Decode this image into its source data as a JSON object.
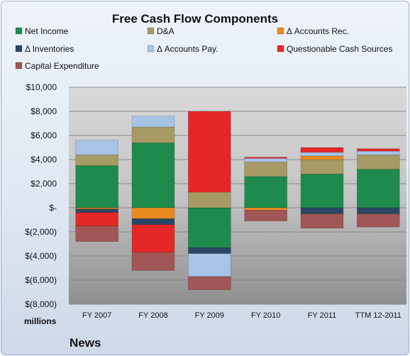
{
  "chart_data": {
    "type": "bar",
    "stacked": true,
    "title": "Free Cash Flow Components",
    "ylabel": "",
    "y_unit_label": "millions",
    "footer": "News",
    "ylim": [
      -8000,
      10000
    ],
    "y_ticks": [
      10000,
      8000,
      6000,
      4000,
      2000,
      0,
      -2000,
      -4000,
      -6000,
      -8000
    ],
    "y_tick_labels": [
      "$10,000",
      "$8,000",
      "$6,000",
      "$4,000",
      "$2,000",
      "$-",
      "$(2,000)",
      "$(4,000)",
      "$(6,000)",
      "$(8,000)"
    ],
    "categories": [
      "FY 2007",
      "FY 2008",
      "FY 2009",
      "FY 2010",
      "FY 2011",
      "TTM 12-2011"
    ],
    "legend_position": "top",
    "series": [
      {
        "name": "Net Income",
        "color": "#1e8a4c",
        "values": [
          3500,
          5400,
          -3300,
          2600,
          2800,
          3200
        ]
      },
      {
        "name": "D&A",
        "color": "#a79a64",
        "values": [
          900,
          1300,
          1300,
          1200,
          1200,
          1200
        ]
      },
      {
        "name": "Δ Accounts Rec.",
        "color": "#e98a1f",
        "values": [
          -100,
          -900,
          0,
          -200,
          300,
          0
        ]
      },
      {
        "name": "Δ Inventories",
        "color": "#2c4766",
        "values": [
          -300,
          -500,
          -500,
          0,
          -500,
          -500
        ]
      },
      {
        "name": "Δ Accounts Pay.",
        "color": "#a6c4e6",
        "values": [
          1200,
          900,
          -1900,
          300,
          300,
          300
        ]
      },
      {
        "name": "Questionable Cash Sources",
        "color": "#e52727",
        "values": [
          -1100,
          -2300,
          6700,
          100,
          400,
          200
        ]
      },
      {
        "name": "Capital Expenditure",
        "color": "#a05655",
        "values": [
          -1300,
          -1500,
          -1100,
          -900,
          -1200,
          -1100
        ]
      }
    ]
  }
}
